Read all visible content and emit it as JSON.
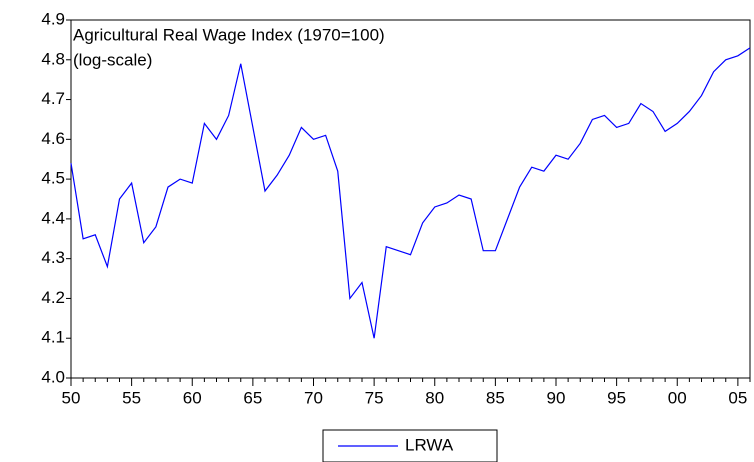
{
  "chart_data": {
    "type": "line",
    "annotation": [
      "Agricultural Real Wage Index (1970=100)",
      "(log-scale)"
    ],
    "categories": [
      "50",
      null,
      null,
      null,
      null,
      "55",
      null,
      null,
      null,
      null,
      "60",
      null,
      null,
      null,
      null,
      "65",
      null,
      null,
      null,
      null,
      "70",
      null,
      null,
      null,
      null,
      "75",
      null,
      null,
      null,
      null,
      "80",
      null,
      null,
      null,
      null,
      "85",
      null,
      null,
      null,
      null,
      "90",
      null,
      null,
      null,
      null,
      "95",
      null,
      null,
      null,
      null,
      "00",
      null,
      null,
      null,
      null,
      "05",
      null
    ],
    "series": [
      {
        "name": "LRWA",
        "color": "#0000ff",
        "values": [
          4.54,
          4.35,
          4.36,
          4.28,
          4.45,
          4.49,
          4.34,
          4.38,
          4.48,
          4.5,
          4.49,
          4.64,
          4.6,
          4.66,
          4.79,
          4.63,
          4.47,
          4.51,
          4.56,
          4.63,
          4.6,
          4.61,
          4.52,
          4.2,
          4.24,
          4.1,
          4.33,
          4.32,
          4.31,
          4.39,
          4.43,
          4.44,
          4.46,
          4.45,
          4.32,
          4.32,
          4.4,
          4.48,
          4.53,
          4.52,
          4.56,
          4.55,
          4.59,
          4.65,
          4.66,
          4.63,
          4.64,
          4.69,
          4.67,
          4.62,
          4.64,
          4.67,
          4.71,
          4.77,
          4.8,
          4.81,
          4.83
        ]
      }
    ],
    "ylim": [
      4.0,
      4.9
    ],
    "yticks": [
      {
        "value": 4,
        "label": "4.0"
      },
      4.1,
      4.2,
      4.3,
      4.4,
      4.5,
      4.6,
      4.7,
      4.8,
      4.9
    ],
    "grid": false,
    "legend": "bottom"
  }
}
